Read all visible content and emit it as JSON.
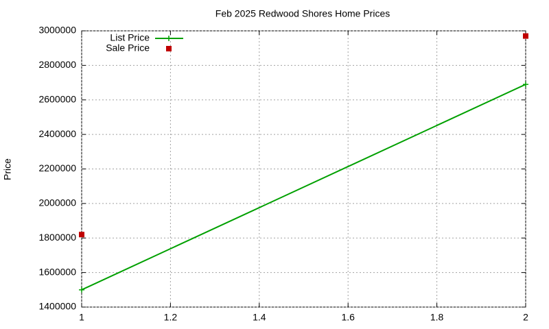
{
  "chart_data": {
    "type": "line",
    "title": "Feb 2025 Redwood Shores Home Prices",
    "y_label": "Price",
    "x": [
      1,
      2
    ],
    "series": [
      {
        "name": "List Price",
        "color": "#00a000",
        "style": "linespoints",
        "values": [
          1500000,
          2690000
        ]
      },
      {
        "name": "Sale Price",
        "color": "#c00000",
        "style": "points",
        "values": [
          1820000,
          2970000
        ]
      }
    ],
    "xlim": [
      1,
      2
    ],
    "xticks": [
      1,
      1.2,
      1.4,
      1.6,
      1.8,
      2
    ],
    "ylim": [
      1400000,
      3000000
    ],
    "yticks": [
      1400000,
      1600000,
      1800000,
      2000000,
      2200000,
      2400000,
      2600000,
      2800000,
      3000000
    ],
    "grid": true,
    "legend": "top-left"
  }
}
